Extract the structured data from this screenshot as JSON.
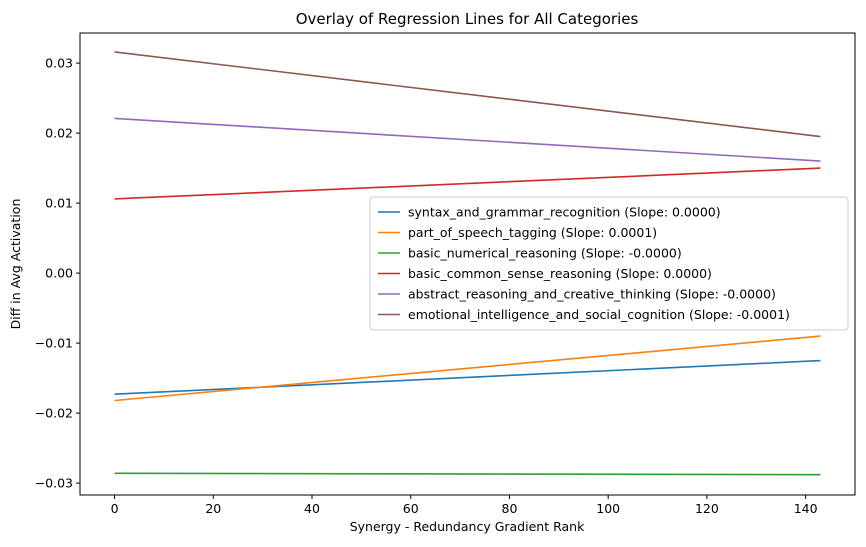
{
  "chart_data": {
    "type": "line",
    "title": "Overlay of Regression Lines for All Categories",
    "xlabel": "Synergy - Redundancy Gradient Rank",
    "ylabel": "Diff in Avg Activation",
    "xlim": [
      -7,
      150
    ],
    "ylim": [
      -0.0317,
      0.0343
    ],
    "xticks": [
      0,
      20,
      40,
      60,
      80,
      100,
      120,
      140
    ],
    "xtick_labels": [
      "0",
      "20",
      "40",
      "60",
      "80",
      "100",
      "120",
      "140"
    ],
    "yticks": [
      -0.03,
      -0.02,
      -0.01,
      0.0,
      0.01,
      0.02,
      0.03
    ],
    "ytick_labels": [
      "−0.03",
      "−0.02",
      "−0.01",
      "0.00",
      "0.01",
      "0.02",
      "0.03"
    ],
    "grid": false,
    "legend_position": "center-right",
    "series": [
      {
        "name": "syntax_and_grammar_recognition (Slope: 0.0000)",
        "color": "#1f77b4",
        "x": [
          0,
          143
        ],
        "y": [
          -0.0173,
          -0.0125
        ]
      },
      {
        "name": "part_of_speech_tagging (Slope: 0.0001)",
        "color": "#ff7f0e",
        "x": [
          0,
          143
        ],
        "y": [
          -0.0182,
          -0.009
        ]
      },
      {
        "name": "basic_numerical_reasoning (Slope: -0.0000)",
        "color": "#2ca02c",
        "x": [
          0,
          143
        ],
        "y": [
          -0.0286,
          -0.0288
        ]
      },
      {
        "name": "basic_common_sense_reasoning (Slope: 0.0000)",
        "color": "#d62728",
        "x": [
          0,
          143
        ],
        "y": [
          0.0106,
          0.015
        ]
      },
      {
        "name": "abstract_reasoning_and_creative_thinking (Slope: -0.0000)",
        "color": "#9467bd",
        "x": [
          0,
          143
        ],
        "y": [
          0.0221,
          0.016
        ]
      },
      {
        "name": "emotional_intelligence_and_social_cognition (Slope: -0.0001)",
        "color": "#8c564b",
        "x": [
          0,
          143
        ],
        "y": [
          0.0316,
          0.0195
        ]
      }
    ]
  }
}
